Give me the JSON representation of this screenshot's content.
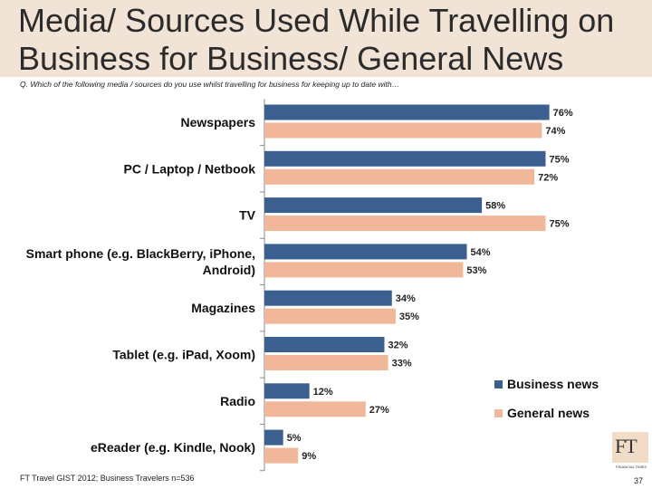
{
  "title": "Media/ Sources Used While Travelling on Business for Business/ General News",
  "question": "Q. Which of the following media / sources do you use whilst travelling for business for keeping up to date with…",
  "footer": {
    "source": "FT Travel GIST 2012; Business Travelers n=536",
    "page_number": "37"
  },
  "logo": {
    "text": "FT",
    "subtext": "FINANCIAL TIMES"
  },
  "colors": {
    "business": "#3b608f",
    "general": "#f0b79b",
    "title_band": "#f1e3d6"
  },
  "chart_data": {
    "type": "bar",
    "orientation": "horizontal",
    "categories": [
      "Newspapers",
      "PC / Laptop / Netbook",
      "TV",
      "Smart phone (e.g. BlackBerry, iPhone, Android)",
      "Magazines",
      "Tablet (e.g. iPad, Xoom)",
      "Radio",
      "eReader (e.g. Kindle, Nook)"
    ],
    "category_lines": [
      [
        "Newspapers"
      ],
      [
        "PC / Laptop / Netbook"
      ],
      [
        "TV"
      ],
      [
        "Smart phone (e.g. BlackBerry, iPhone,",
        "Android)"
      ],
      [
        "Magazines"
      ],
      [
        "Tablet (e.g. iPad, Xoom)"
      ],
      [
        "Radio"
      ],
      [
        "eReader (e.g. Kindle, Nook)"
      ]
    ],
    "series": [
      {
        "name": "Business news",
        "values": [
          76,
          75,
          58,
          54,
          34,
          32,
          12,
          5
        ],
        "labels": [
          "76%",
          "75%",
          "58%",
          "54%",
          "34%",
          "32%",
          "12%",
          "5%"
        ]
      },
      {
        "name": "General news",
        "values": [
          74,
          72,
          75,
          53,
          35,
          33,
          27,
          9
        ],
        "labels": [
          "74%",
          "72%",
          "75%",
          "53%",
          "35%",
          "33%",
          "27%",
          "9%"
        ]
      }
    ],
    "xlim": [
      0,
      100
    ],
    "legend_position": "bottom-right"
  }
}
